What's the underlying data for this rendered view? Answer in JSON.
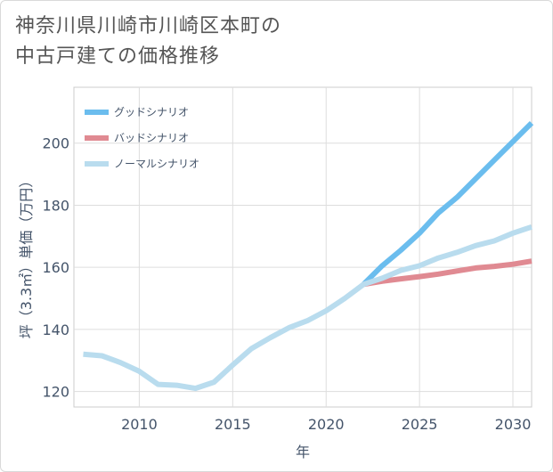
{
  "title_lines": [
    "神奈川県川崎市川崎区本町の",
    "中古戸建ての価格推移"
  ],
  "chart_data": {
    "type": "line",
    "xlabel": "年",
    "ylabel": "坪（3.3㎡）単価（万円）",
    "xlim": [
      2006.5,
      2031
    ],
    "ylim": [
      115,
      218
    ],
    "xticks": [
      2010,
      2015,
      2020,
      2025,
      2030
    ],
    "yticks": [
      120,
      140,
      160,
      180,
      200
    ],
    "legend_position": "top-left",
    "series": [
      {
        "name": "グッドシナリオ",
        "color": "#6bbdee",
        "x": [
          2022,
          2023,
          2024,
          2025,
          2026,
          2027,
          2028,
          2029,
          2030,
          2031
        ],
        "values": [
          154.5,
          160.5,
          165.5,
          171,
          177.5,
          182.5,
          188.5,
          194.5,
          200.5,
          206.5
        ]
      },
      {
        "name": "バッドシナリオ",
        "color": "#e08a92",
        "x": [
          2022,
          2023,
          2024,
          2025,
          2026,
          2027,
          2028,
          2029,
          2030,
          2031
        ],
        "values": [
          154.5,
          155.5,
          156.3,
          157,
          157.8,
          158.8,
          159.8,
          160.3,
          161,
          162
        ]
      },
      {
        "name": "ノーマルシナリオ",
        "color": "#b9dcee",
        "x": [
          2007,
          2008,
          2009,
          2010,
          2011,
          2012,
          2013,
          2014,
          2015,
          2016,
          2017,
          2018,
          2019,
          2020,
          2021,
          2022,
          2023,
          2024,
          2025,
          2026,
          2027,
          2028,
          2029,
          2030,
          2031
        ],
        "values": [
          132,
          131.5,
          129.3,
          126.5,
          122.3,
          122,
          121,
          123,
          128.5,
          133.8,
          137.3,
          140.5,
          142.8,
          146,
          150,
          154.5,
          156.5,
          159,
          160.5,
          163,
          164.8,
          167,
          168.5,
          171,
          173
        ]
      }
    ]
  }
}
